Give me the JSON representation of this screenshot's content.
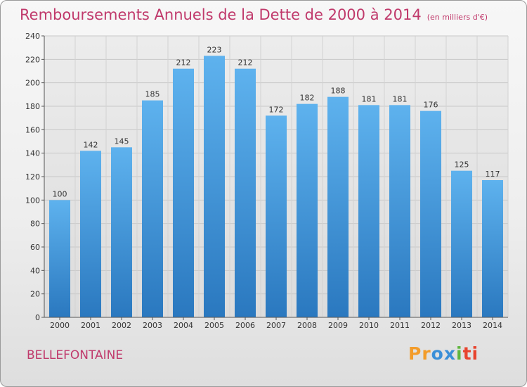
{
  "header": {
    "title": "Remboursements Annuels de la Dette de 2000 à 2014",
    "unit": "(en milliers d'€)"
  },
  "commune": "BELLEFONTAINE",
  "logo": {
    "text": "Proxiti",
    "colors": [
      "#f39c2a",
      "#3a8fd8",
      "#5fb63e",
      "#e8442e"
    ]
  },
  "chart_data": {
    "type": "bar",
    "title": "Remboursements Annuels de la Dette de 2000 à 2014",
    "xlabel": "",
    "ylabel": "",
    "categories": [
      "2000",
      "2001",
      "2002",
      "2003",
      "2004",
      "2005",
      "2006",
      "2007",
      "2008",
      "2009",
      "2010",
      "2011",
      "2012",
      "2013",
      "2014"
    ],
    "values": [
      100,
      142,
      145,
      185,
      212,
      223,
      212,
      172,
      182,
      188,
      181,
      181,
      176,
      125,
      117
    ],
    "ylim": [
      0,
      240
    ],
    "yticks": [
      0,
      20,
      40,
      60,
      80,
      100,
      120,
      140,
      160,
      180,
      200,
      220,
      240
    ],
    "grid": true,
    "bar_color": "#3f8fd6"
  }
}
